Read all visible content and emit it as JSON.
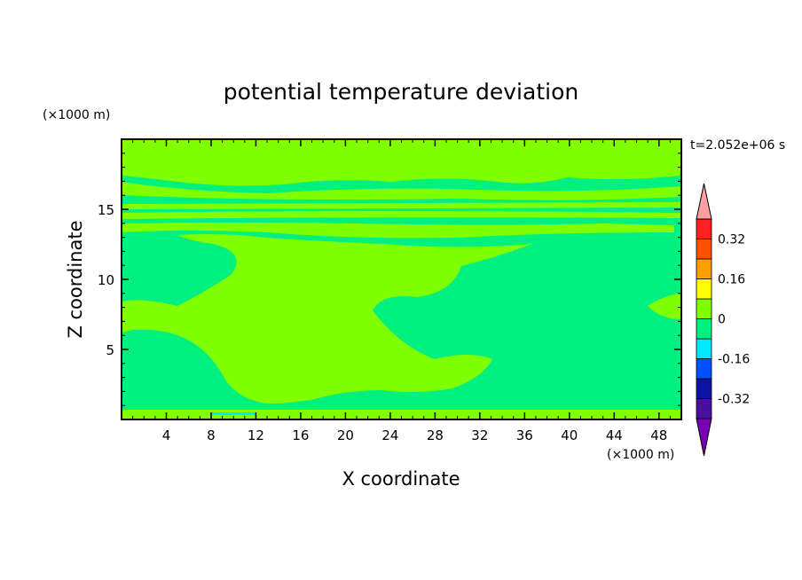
{
  "chart_data": {
    "type": "heatmap",
    "title": "potential temperature deviation",
    "xlabel": "X coordinate",
    "ylabel": "Z coordinate",
    "x_unit": "(×1000 m)",
    "y_unit": "(×1000 m)",
    "time_label": "t=2.052e+06 s",
    "xlim": [
      0,
      50
    ],
    "ylim": [
      0,
      20
    ],
    "x_ticks": [
      4,
      8,
      12,
      16,
      20,
      24,
      28,
      32,
      36,
      40,
      44,
      48
    ],
    "y_ticks": [
      5,
      10,
      15
    ],
    "colorbar": {
      "levels": [
        -0.4,
        -0.32,
        -0.24,
        -0.16,
        -0.08,
        0,
        0.08,
        0.16,
        0.24,
        0.32,
        0.4
      ],
      "tick_labels": [
        "0.32",
        "0.16",
        "0",
        "-0.16",
        "-0.32"
      ],
      "tick_values": [
        0.32,
        0.16,
        0,
        -0.16,
        -0.32
      ],
      "colors": [
        "#7a00b8",
        "#4a0fa0",
        "#0a14a0",
        "#0050ff",
        "#00e8ff",
        "#00f07f",
        "#80ff00",
        "#ffff00",
        "#ffa000",
        "#ff5000",
        "#ff2020",
        "#ffa0a0"
      ]
    },
    "background_color": "#00f07f",
    "region_color": "#80ff00"
  }
}
